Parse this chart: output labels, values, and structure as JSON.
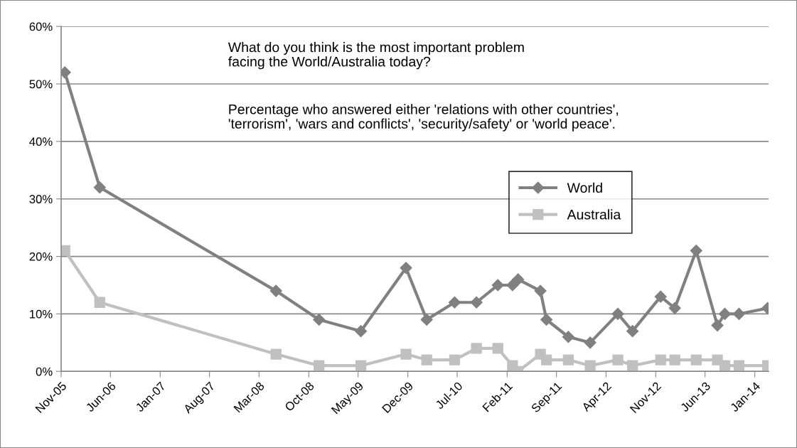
{
  "chart_data": {
    "type": "line",
    "annotations": [
      "What do you think is the most important problem\nfacing the World/Australia today?",
      "Percentage who answered either 'relations with other countries',\n'terrorism', 'wars and conflicts', 'security/safety' or 'world peace'."
    ],
    "x": [
      "2005-11-17",
      "2006-04-16",
      "2008-05-13",
      "2008-11-14",
      "2009-05-13",
      "2009-11-23",
      "2010-02-20",
      "2010-06-20",
      "2010-09-22",
      "2010-12-23",
      "2011-02-24",
      "2011-03-20",
      "2011-06-24",
      "2011-07-20",
      "2011-10-22",
      "2012-01-24",
      "2012-05-22",
      "2012-07-24",
      "2012-11-22",
      "2013-01-22",
      "2013-04-24",
      "2013-07-24",
      "2013-08-25",
      "2013-10-25",
      "2014-02-25"
    ],
    "series": [
      {
        "name": "World",
        "color": "#808080",
        "marker": "diamond",
        "values": [
          52,
          32,
          14,
          9,
          7,
          18,
          9,
          12,
          12,
          15,
          15,
          16,
          14,
          9,
          6,
          5,
          10,
          7,
          13,
          11,
          21,
          8,
          10,
          10,
          11
        ]
      },
      {
        "name": "Australia",
        "color": "#c0c0c0",
        "marker": "square",
        "values": [
          21,
          12,
          3,
          1,
          1,
          3,
          2,
          2,
          4,
          4,
          1,
          0,
          3,
          2,
          2,
          1,
          2,
          1,
          2,
          2,
          2,
          2,
          1,
          1,
          1
        ]
      }
    ],
    "xlim": [
      "2005-11-01",
      "2014-03-01"
    ],
    "xticks": [
      {
        "value": "2005-11-01",
        "label": "Nov-05"
      },
      {
        "value": "2006-06-01",
        "label": "Jun-06"
      },
      {
        "value": "2007-01-01",
        "label": "Jan-07"
      },
      {
        "value": "2007-08-01",
        "label": "Aug-07"
      },
      {
        "value": "2008-03-01",
        "label": "Mar-08"
      },
      {
        "value": "2008-10-01",
        "label": "Oct-08"
      },
      {
        "value": "2009-05-01",
        "label": "May-09"
      },
      {
        "value": "2009-12-01",
        "label": "Dec-09"
      },
      {
        "value": "2010-07-01",
        "label": "Jul-10"
      },
      {
        "value": "2011-02-01",
        "label": "Feb-11"
      },
      {
        "value": "2011-09-01",
        "label": "Sep-11"
      },
      {
        "value": "2012-04-01",
        "label": "Apr-12"
      },
      {
        "value": "2012-11-01",
        "label": "Nov-12"
      },
      {
        "value": "2013-06-01",
        "label": "Jun-13"
      },
      {
        "value": "2014-01-01",
        "label": "Jan-14"
      }
    ],
    "ylim": [
      0,
      60
    ],
    "yticks": [
      {
        "value": 0,
        "label": "0%"
      },
      {
        "value": 10,
        "label": "10%"
      },
      {
        "value": 20,
        "label": "20%"
      },
      {
        "value": 30,
        "label": "30%"
      },
      {
        "value": 40,
        "label": "40%"
      },
      {
        "value": 50,
        "label": "50%"
      },
      {
        "value": 60,
        "label": "60%"
      }
    ],
    "grid": "y",
    "legend": "center right",
    "line_style": "solid"
  }
}
